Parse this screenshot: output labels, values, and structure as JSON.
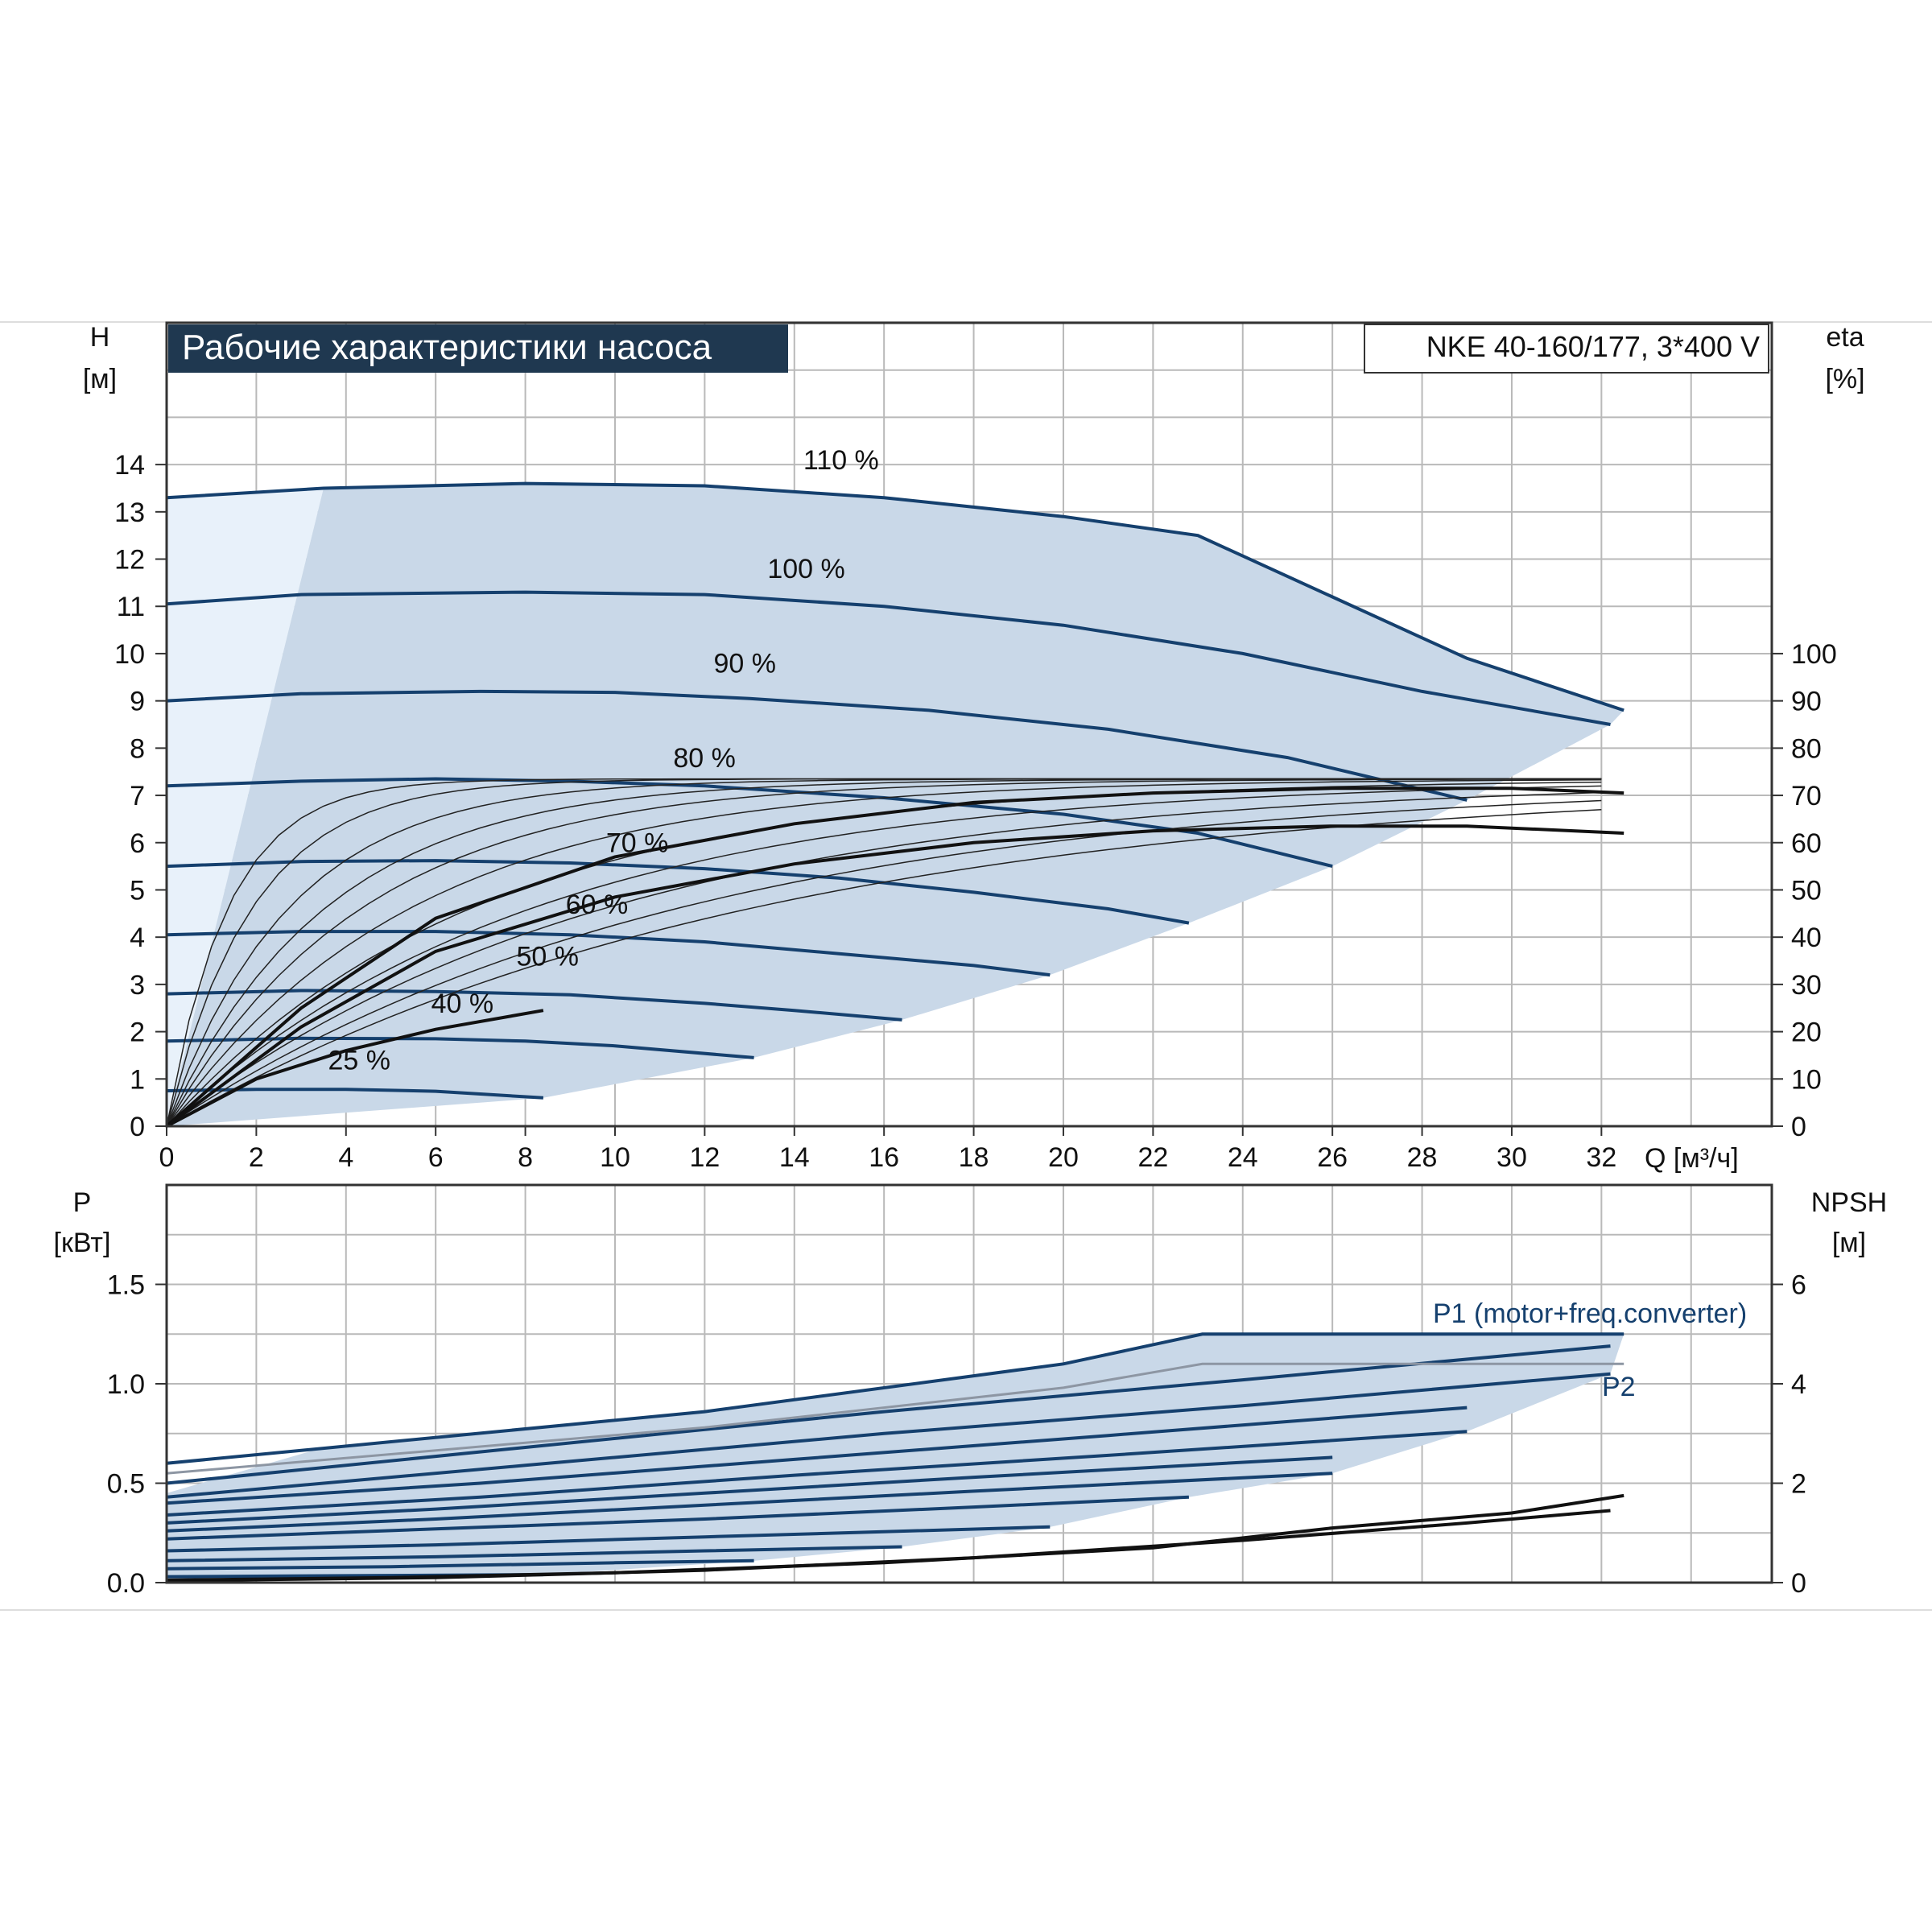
{
  "title": "Рабочие характеристики насоса",
  "model": "NKE 40-160/177, 3*400 V",
  "colors": {
    "title_bg": "#1f3850",
    "grid": "#b9b9b9",
    "region": "#c9d8e8",
    "region_light": "#e8f1fa",
    "speed_curve": "#15406e",
    "eff_curve": "#111111"
  },
  "chart_data": [
    {
      "type": "line",
      "name": "head",
      "x_axis": {
        "label": "Q [м³/ч]",
        "range": [
          0,
          35.8
        ],
        "ticks": [
          0,
          2,
          4,
          6,
          8,
          10,
          12,
          14,
          16,
          18,
          20,
          22,
          24,
          26,
          28,
          30,
          32
        ]
      },
      "y_axis_left": {
        "label": "H",
        "unit": "[м]",
        "range": [
          0,
          17
        ],
        "ticks": [
          0,
          1,
          2,
          3,
          4,
          5,
          6,
          7,
          8,
          9,
          10,
          11,
          12,
          13,
          14
        ]
      },
      "y_axis_right": {
        "label": "eta",
        "unit": "[%]",
        "range": [
          0,
          170
        ],
        "ticks": [
          0,
          10,
          20,
          30,
          40,
          50,
          60,
          70,
          80,
          90,
          100
        ]
      },
      "grid": true,
      "speed_curves": [
        {
          "label": "110 %",
          "label_at": [
            14.2,
            13.9
          ],
          "points": [
            [
              0,
              13.3
            ],
            [
              3.5,
              13.5
            ],
            [
              8,
              13.6
            ],
            [
              12,
              13.55
            ],
            [
              16,
              13.3
            ],
            [
              20,
              12.9
            ],
            [
              23,
              12.5
            ],
            [
              26,
              11.2
            ],
            [
              29,
              9.9
            ],
            [
              32.5,
              8.8
            ]
          ]
        },
        {
          "label": "100 %",
          "label_at": [
            13.4,
            11.6
          ],
          "points": [
            [
              0,
              11.05
            ],
            [
              3,
              11.25
            ],
            [
              8,
              11.3
            ],
            [
              12,
              11.25
            ],
            [
              16,
              11
            ],
            [
              20,
              10.6
            ],
            [
              24,
              10
            ],
            [
              28,
              9.2
            ],
            [
              32.2,
              8.5
            ]
          ]
        },
        {
          "label": "90 %",
          "label_at": [
            12.2,
            9.6
          ],
          "points": [
            [
              0,
              9.0
            ],
            [
              3,
              9.15
            ],
            [
              7,
              9.2
            ],
            [
              10,
              9.18
            ],
            [
              13,
              9.05
            ],
            [
              17,
              8.8
            ],
            [
              21,
              8.4
            ],
            [
              25,
              7.8
            ],
            [
              29,
              6.9
            ]
          ]
        },
        {
          "label": "80 %",
          "label_at": [
            11.3,
            7.6
          ],
          "points": [
            [
              0,
              7.2
            ],
            [
              3,
              7.3
            ],
            [
              6,
              7.35
            ],
            [
              9,
              7.3
            ],
            [
              12,
              7.2
            ],
            [
              16,
              6.95
            ],
            [
              20,
              6.6
            ],
            [
              23,
              6.2
            ],
            [
              26,
              5.5
            ]
          ]
        },
        {
          "label": "70 %",
          "label_at": [
            9.8,
            5.8
          ],
          "points": [
            [
              0,
              5.5
            ],
            [
              3,
              5.6
            ],
            [
              6,
              5.62
            ],
            [
              9,
              5.57
            ],
            [
              12,
              5.45
            ],
            [
              15,
              5.25
            ],
            [
              18,
              4.95
            ],
            [
              21,
              4.6
            ],
            [
              22.8,
              4.3
            ]
          ]
        },
        {
          "label": "60 %",
          "label_at": [
            8.9,
            4.5
          ],
          "points": [
            [
              0,
              4.05
            ],
            [
              3,
              4.12
            ],
            [
              6,
              4.12
            ],
            [
              9,
              4.05
            ],
            [
              12,
              3.9
            ],
            [
              15,
              3.65
            ],
            [
              18,
              3.4
            ],
            [
              19.7,
              3.2
            ]
          ]
        },
        {
          "label": "50 %",
          "label_at": [
            7.8,
            3.4
          ],
          "points": [
            [
              0,
              2.8
            ],
            [
              3,
              2.87
            ],
            [
              6,
              2.85
            ],
            [
              9,
              2.78
            ],
            [
              12,
              2.6
            ],
            [
              14,
              2.45
            ],
            [
              16.4,
              2.25
            ]
          ]
        },
        {
          "label": "40 %",
          "label_at": [
            5.9,
            2.4
          ],
          "points": [
            [
              0,
              1.8
            ],
            [
              3,
              1.86
            ],
            [
              6,
              1.85
            ],
            [
              8,
              1.8
            ],
            [
              10,
              1.7
            ],
            [
              13.1,
              1.45
            ]
          ]
        },
        {
          "label": "25 %",
          "label_at": [
            3.6,
            1.2
          ],
          "points": [
            [
              0,
              0.75
            ],
            [
              2,
              0.78
            ],
            [
              4,
              0.78
            ],
            [
              6,
              0.74
            ],
            [
              8.4,
              0.6
            ]
          ]
        }
      ],
      "efficiency_curves": [
        {
          "name": "eta (100 %, 110 %)",
          "points": [
            [
              0,
              0
            ],
            [
              3,
              25
            ],
            [
              6,
              44
            ],
            [
              10,
              57
            ],
            [
              14,
              64
            ],
            [
              18,
              68.5
            ],
            [
              22,
              70.5
            ],
            [
              26,
              71.5
            ],
            [
              30,
              71.5
            ],
            [
              32.5,
              70.5
            ]
          ]
        },
        {
          "name": "eta (total)",
          "points": [
            [
              0,
              0
            ],
            [
              3,
              21
            ],
            [
              6,
              37
            ],
            [
              10,
              48.5
            ],
            [
              14,
              55.5
            ],
            [
              18,
              60
            ],
            [
              22,
              62.5
            ],
            [
              26,
              63.5
            ],
            [
              29,
              63.5
            ],
            [
              32.5,
              62
            ]
          ]
        },
        {
          "name": "eta (40 %)",
          "points": [
            [
              0,
              0
            ],
            [
              2,
              10
            ],
            [
              4,
              16
            ],
            [
              6,
              20.5
            ],
            [
              8.4,
              24.5
            ]
          ]
        }
      ]
    },
    {
      "type": "line",
      "name": "power",
      "x_axis": {
        "range": [
          0,
          35.8
        ]
      },
      "y_axis_left": {
        "label": "P",
        "unit": "[кВт]",
        "range": [
          0,
          2.0
        ],
        "ticks": [
          "0.0",
          "0.5",
          "1.0",
          "1.5"
        ]
      },
      "y_axis_right": {
        "label": "NPSH",
        "unit": "[м]",
        "range": [
          0,
          8
        ],
        "ticks": [
          0,
          2,
          4,
          6
        ]
      },
      "grid": true,
      "labels": {
        "p1": "P1 (motor+freq.converter)",
        "p2": "P2"
      },
      "power_curves": [
        {
          "name": "P1 110 %",
          "points": [
            [
              0,
              0.6
            ],
            [
              12,
              0.86
            ],
            [
              20,
              1.1
            ],
            [
              23.1,
              1.25
            ],
            [
              32.5,
              1.25
            ]
          ]
        },
        {
          "name": "P1 100 %",
          "points": [
            [
              0,
              0.5
            ],
            [
              8,
              0.68
            ],
            [
              16,
              0.86
            ],
            [
              24,
              1.02
            ],
            [
              32.2,
              1.19
            ]
          ]
        },
        {
          "name": "P2 100 %",
          "points": [
            [
              0,
              0.43
            ],
            [
              8,
              0.59
            ],
            [
              16,
              0.75
            ],
            [
              24,
              0.89
            ],
            [
              32.2,
              1.05
            ]
          ]
        },
        {
          "name": "P1 90 %",
          "points": [
            [
              0,
              0.4
            ],
            [
              7,
              0.5
            ],
            [
              14,
              0.62
            ],
            [
              21,
              0.74
            ],
            [
              29,
              0.88
            ]
          ]
        },
        {
          "name": "P2 90 %",
          "points": [
            [
              0,
              0.34
            ],
            [
              7,
              0.43
            ],
            [
              14,
              0.54
            ],
            [
              21,
              0.64
            ],
            [
              29,
              0.76
            ]
          ]
        },
        {
          "name": "P1 80 %",
          "points": [
            [
              0,
              0.3
            ],
            [
              6,
              0.37
            ],
            [
              12,
              0.45
            ],
            [
              18,
              0.53
            ],
            [
              26,
              0.63
            ]
          ]
        },
        {
          "name": "P2 80 %",
          "points": [
            [
              0,
              0.26
            ],
            [
              6,
              0.32
            ],
            [
              12,
              0.39
            ],
            [
              18,
              0.46
            ],
            [
              26,
              0.55
            ]
          ]
        },
        {
          "name": "P1 70 %",
          "points": [
            [
              0,
              0.22
            ],
            [
              6,
              0.27
            ],
            [
              12,
              0.32
            ],
            [
              18,
              0.38
            ],
            [
              22.8,
              0.43
            ]
          ]
        },
        {
          "name": "P1 60 %",
          "points": [
            [
              0,
              0.16
            ],
            [
              6,
              0.19
            ],
            [
              12,
              0.23
            ],
            [
              19.7,
              0.28
            ]
          ]
        },
        {
          "name": "P1 50 %",
          "points": [
            [
              0,
              0.11
            ],
            [
              6,
              0.13
            ],
            [
              12,
              0.16
            ],
            [
              16.4,
              0.18
            ]
          ]
        },
        {
          "name": "P1 40 %",
          "points": [
            [
              0,
              0.07
            ],
            [
              5,
              0.08
            ],
            [
              10,
              0.1
            ],
            [
              13.1,
              0.11
            ]
          ]
        },
        {
          "name": "P1 25 %",
          "points": [
            [
              0,
              0.03
            ],
            [
              4,
              0.035
            ],
            [
              8.4,
              0.04
            ]
          ]
        }
      ],
      "npsh_curves": [
        {
          "name": "NPSH 110 %",
          "points": [
            [
              0,
              0.05
            ],
            [
              5,
              0.1
            ],
            [
              10,
              0.2
            ],
            [
              16,
              0.4
            ],
            [
              22,
              0.7
            ],
            [
              26,
              1.1
            ],
            [
              30,
              1.4
            ],
            [
              32.5,
              1.75
            ]
          ]
        },
        {
          "name": "NPSH 100 %",
          "points": [
            [
              0,
              0.04
            ],
            [
              6,
              0.1
            ],
            [
              12,
              0.25
            ],
            [
              18,
              0.5
            ],
            [
              24,
              0.85
            ],
            [
              29,
              1.2
            ],
            [
              32.2,
              1.45
            ]
          ]
        }
      ]
    }
  ]
}
